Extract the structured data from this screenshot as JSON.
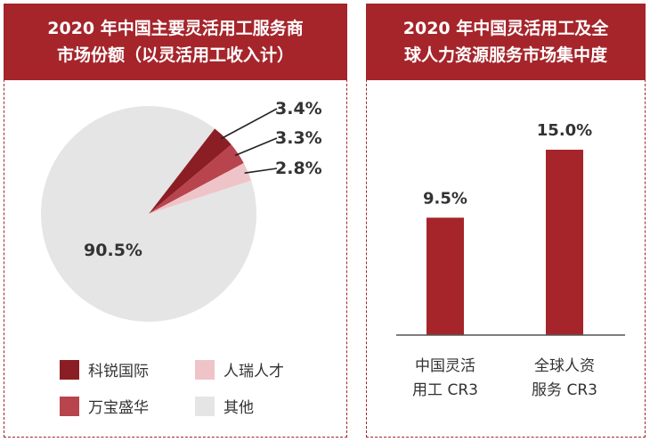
{
  "colors": {
    "header_bg": "#a5252b",
    "bar": "#a5252b",
    "kerui": "#8b1e24",
    "wanbao": "#b8444d",
    "renrui": "#efc4c8",
    "other": "#e5e5e5"
  },
  "chart_data": [
    {
      "type": "pie",
      "title_lines": [
        "2020 年中国主要灵活用工服务商",
        "市场份额（以灵活用工收入计）"
      ],
      "unit": "%",
      "slices": [
        {
          "name": "科锐国际",
          "value": 3.4,
          "label": "3.4%"
        },
        {
          "name": "万宝盛华",
          "value": 3.3,
          "label": "3.3%"
        },
        {
          "name": "人瑞人才",
          "value": 2.8,
          "label": "2.8%"
        },
        {
          "name": "其他",
          "value": 90.5,
          "label": "90.5%"
        }
      ],
      "legend_order": [
        "科锐国际",
        "人瑞人才",
        "万宝盛华",
        "其他"
      ]
    },
    {
      "type": "bar",
      "title_lines": [
        "2020 年中国灵活用工及全",
        "球人力资源服务市场集中度"
      ],
      "unit": "%",
      "categories": [
        [
          "中国灵活",
          "用工 CR3"
        ],
        [
          "全球人资",
          "服务 CR3"
        ]
      ],
      "values": [
        9.5,
        15.0
      ],
      "value_labels": [
        "9.5%",
        "15.0%"
      ],
      "ylim": [
        0,
        15.0
      ]
    }
  ]
}
